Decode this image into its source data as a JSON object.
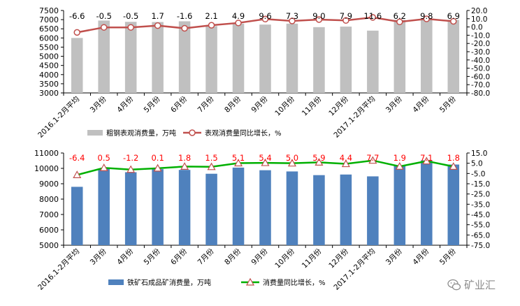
{
  "chart_data": [
    {
      "type": "bar+line",
      "categories": [
        "2016.1-2月平均",
        "3月份",
        "4月份",
        "5月份",
        "6月份",
        "7月份",
        "8月份",
        "9月份",
        "10月份",
        "11月份",
        "12月份",
        "2017.1-2月平均",
        "3月份",
        "4月份",
        "5月份"
      ],
      "bar_series": {
        "name": "粗钢表观消费量，万吨",
        "color": "#c0c0c0",
        "values": [
          6000,
          6950,
          6880,
          6870,
          6910,
          6650,
          6780,
          6730,
          6780,
          6590,
          6620,
          6400,
          6990,
          7040,
          6990
        ]
      },
      "line_series": {
        "name": "表观消费量同比增长，%",
        "color": "#c0504d",
        "values": [
          -6.6,
          -0.5,
          -0.5,
          1.7,
          -1.6,
          2.1,
          4.9,
          9.6,
          7.3,
          9.0,
          7.9,
          11.6,
          6.2,
          9.8,
          6.9
        ],
        "labels": [
          "-6.6",
          "-0.5",
          "-0.5",
          "1.7",
          "-1.6",
          "2.1",
          "4.9",
          "9.6",
          "7.3",
          "9.0",
          "7.9",
          "11.6",
          "6.2",
          "9.8",
          "6.9"
        ]
      },
      "y_left": {
        "min": 3000,
        "max": 7500,
        "step": 500,
        "ticks": [
          "3000",
          "3500",
          "4000",
          "4500",
          "5000",
          "5500",
          "6000",
          "6500",
          "7000",
          "7500"
        ]
      },
      "y_right": {
        "min": -80,
        "max": 20,
        "step": 10,
        "ticks": [
          "-80.0",
          "-70.0",
          "-60.0",
          "-50.0",
          "-40.0",
          "-30.0",
          "-20.0",
          "-10.0",
          "0.0",
          "10.0",
          "20.0"
        ]
      },
      "grid": false,
      "legend": "bottom"
    },
    {
      "type": "bar+line",
      "categories": [
        "2016.1-2月平均",
        "3月份",
        "4月份",
        "5月份",
        "6月份",
        "7月份",
        "8月份",
        "9月份",
        "10月份",
        "11月份",
        "12月份",
        "2017.1-2月平均",
        "3月份",
        "4月份",
        "5月份"
      ],
      "bar_series": {
        "name": "铁矿石成品矿消费量，万吨",
        "color": "#4f81bd",
        "values": [
          8800,
          10000,
          9750,
          9950,
          9900,
          9650,
          10050,
          9880,
          9800,
          9560,
          9600,
          9480,
          10180,
          10520,
          10250
        ]
      },
      "line_series": {
        "name": "消费量同比增长，%",
        "color": "#00b000",
        "values": [
          -6.4,
          0.5,
          -1.2,
          0.1,
          1.8,
          1.5,
          5.1,
          5.4,
          5.0,
          5.9,
          4.4,
          7.7,
          1.9,
          7.1,
          1.8
        ],
        "labels": [
          "-6.4",
          "0.5",
          "-1.2",
          "0.1",
          "1.8",
          "1.5",
          "5.1",
          "5.4",
          "5.0",
          "5.9",
          "4.4",
          "7.7",
          "1.9",
          "7.1",
          "1.8"
        ]
      },
      "y_left": {
        "min": 5000,
        "max": 11000,
        "step": 1000,
        "ticks": [
          "5000",
          "6000",
          "7000",
          "8000",
          "9000",
          "10000",
          "11000"
        ]
      },
      "y_right": {
        "min": -75,
        "max": 15,
        "step": 10,
        "ticks": [
          "-75.0",
          "-65.0",
          "-55.0",
          "-45.0",
          "-35.0",
          "-25.0",
          "-15.0",
          "-5.0",
          "5.0",
          "15.0"
        ]
      },
      "grid": false,
      "legend": "bottom"
    }
  ],
  "watermark": {
    "text": "矿业汇",
    "icon": "wechat-icon"
  }
}
